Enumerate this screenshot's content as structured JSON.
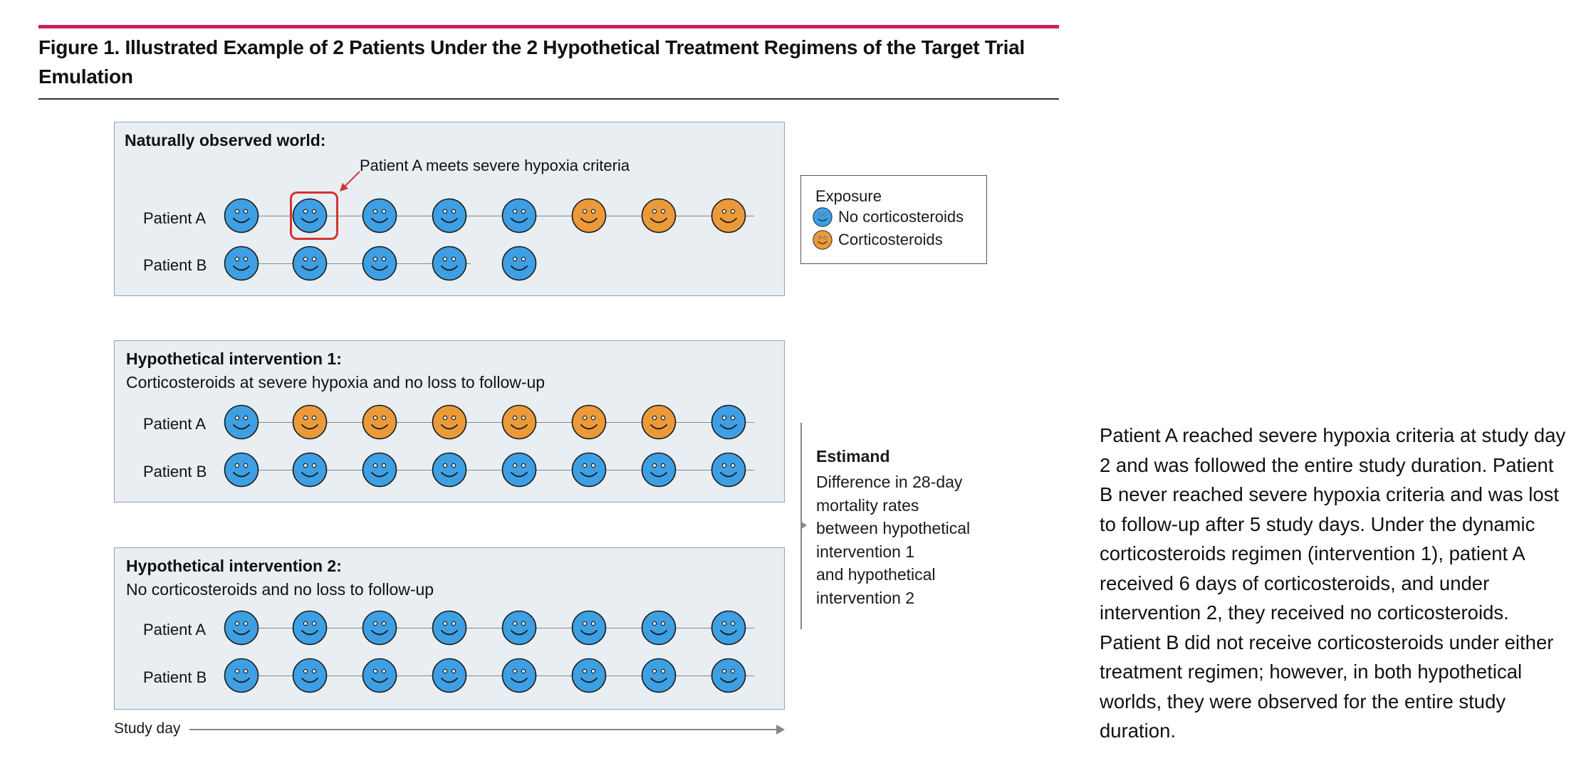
{
  "figure": {
    "title": "Figure 1. Illustrated Example of 2 Patients Under the 2 Hypothetical Treatment Regimens of the Target Trial Emulation"
  },
  "colors": {
    "accent_rule": "#c8235e",
    "no_corticosteroids": "#3e9fe3",
    "corticosteroids": "#eb9a3a",
    "highlight": "#d3342f",
    "panel_bg": "#e9eef2"
  },
  "panels": [
    {
      "title": "Naturally observed world:",
      "subtitle": "",
      "annotation": "Patient A meets severe hypoxia criteria",
      "patients": [
        {
          "label": "Patient A",
          "days": [
            "none",
            "none",
            "none",
            "none",
            "none",
            "cort",
            "cort",
            "cort"
          ],
          "highlight_day": 2
        },
        {
          "label": "Patient B",
          "days": [
            "none",
            "none",
            "none",
            "none",
            "none"
          ]
        }
      ]
    },
    {
      "title": "Hypothetical intervention 1:",
      "subtitle": "Corticosteroids at severe hypoxia and no loss to follow-up",
      "patients": [
        {
          "label": "Patient A",
          "days": [
            "none",
            "cort",
            "cort",
            "cort",
            "cort",
            "cort",
            "cort",
            "none"
          ]
        },
        {
          "label": "Patient B",
          "days": [
            "none",
            "none",
            "none",
            "none",
            "none",
            "none",
            "none",
            "none"
          ]
        }
      ]
    },
    {
      "title": "Hypothetical intervention 2:",
      "subtitle": "No corticosteroids and no loss to follow-up",
      "patients": [
        {
          "label": "Patient A",
          "days": [
            "none",
            "none",
            "none",
            "none",
            "none",
            "none",
            "none",
            "none"
          ]
        },
        {
          "label": "Patient B",
          "days": [
            "none",
            "none",
            "none",
            "none",
            "none",
            "none",
            "none",
            "none"
          ]
        }
      ]
    }
  ],
  "legend": {
    "title": "Exposure",
    "items": [
      {
        "label": "No corticosteroids",
        "icon": "smiley-blue-icon"
      },
      {
        "label": "Corticosteroids",
        "icon": "smiley-orange-icon"
      }
    ]
  },
  "estimand": {
    "title": "Estimand",
    "lines": [
      "Difference in 28-day",
      "mortality rates",
      "between hypothetical",
      "intervention 1",
      "and hypothetical",
      "intervention 2"
    ]
  },
  "axis": {
    "label": "Study day"
  },
  "caption": "Patient A reached severe hypoxia criteria at study day 2 and was followed the entire study duration. Patient B never reached severe hypoxia criteria and was lost to follow-up after 5 study days. Under the dynamic corticosteroids regimen (intervention 1), patient A received 6 days of corticosteroids, and under intervention 2, they received no corticosteroids. Patient B did not receive corticosteroids under either treatment regimen; however, in both hypothetical worlds, they were observed for the entire study duration."
}
